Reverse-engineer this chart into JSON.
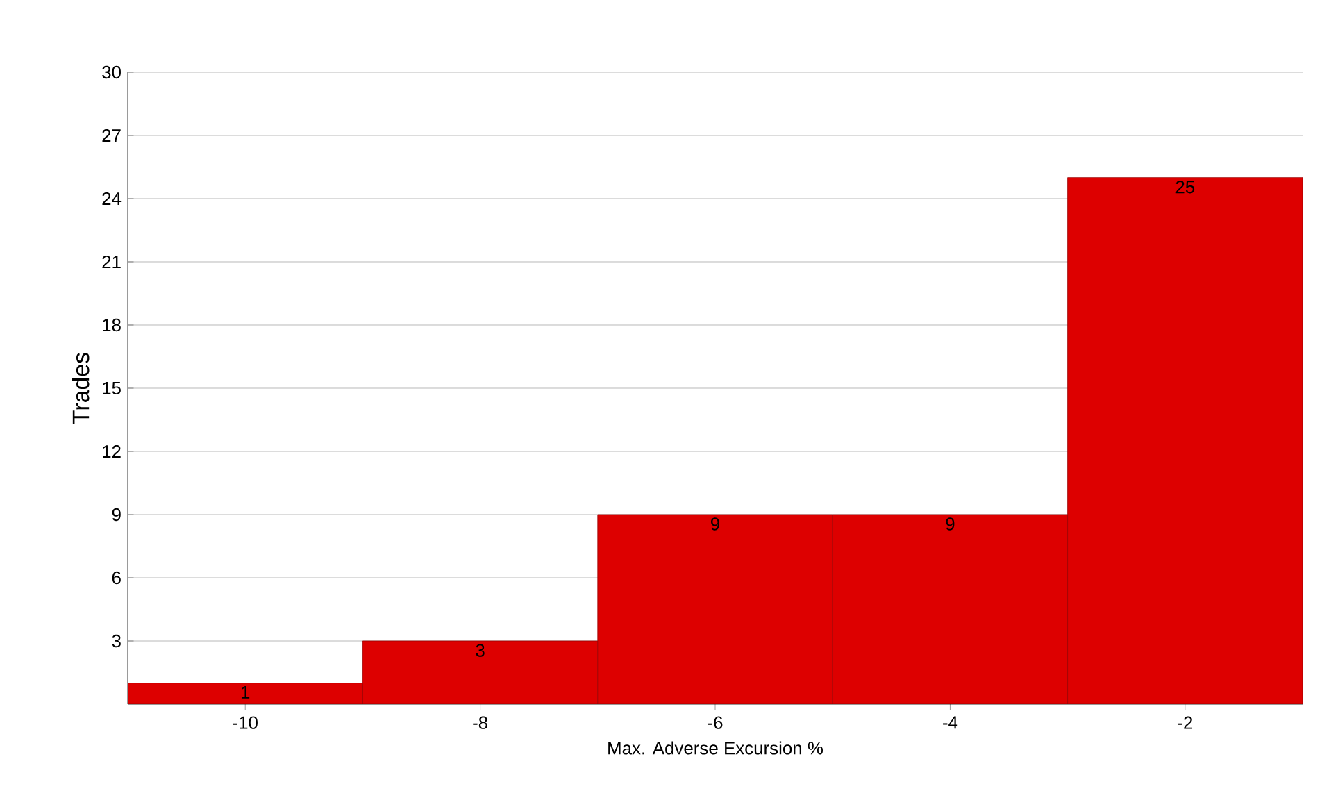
{
  "chart_data": {
    "type": "bar",
    "xlabel": "Max. Adverse Excursion %",
    "ylabel": "Trades",
    "categories": [
      "-10",
      "-8",
      "-6",
      "-4",
      "-2"
    ],
    "values": [
      1,
      3,
      9,
      9,
      25
    ],
    "color": "#dd0000",
    "ylim": [
      0,
      30
    ],
    "yticks": [
      3,
      6,
      9,
      12,
      15,
      18,
      21,
      24,
      27,
      30
    ],
    "grid": "y",
    "data_labels": true
  }
}
